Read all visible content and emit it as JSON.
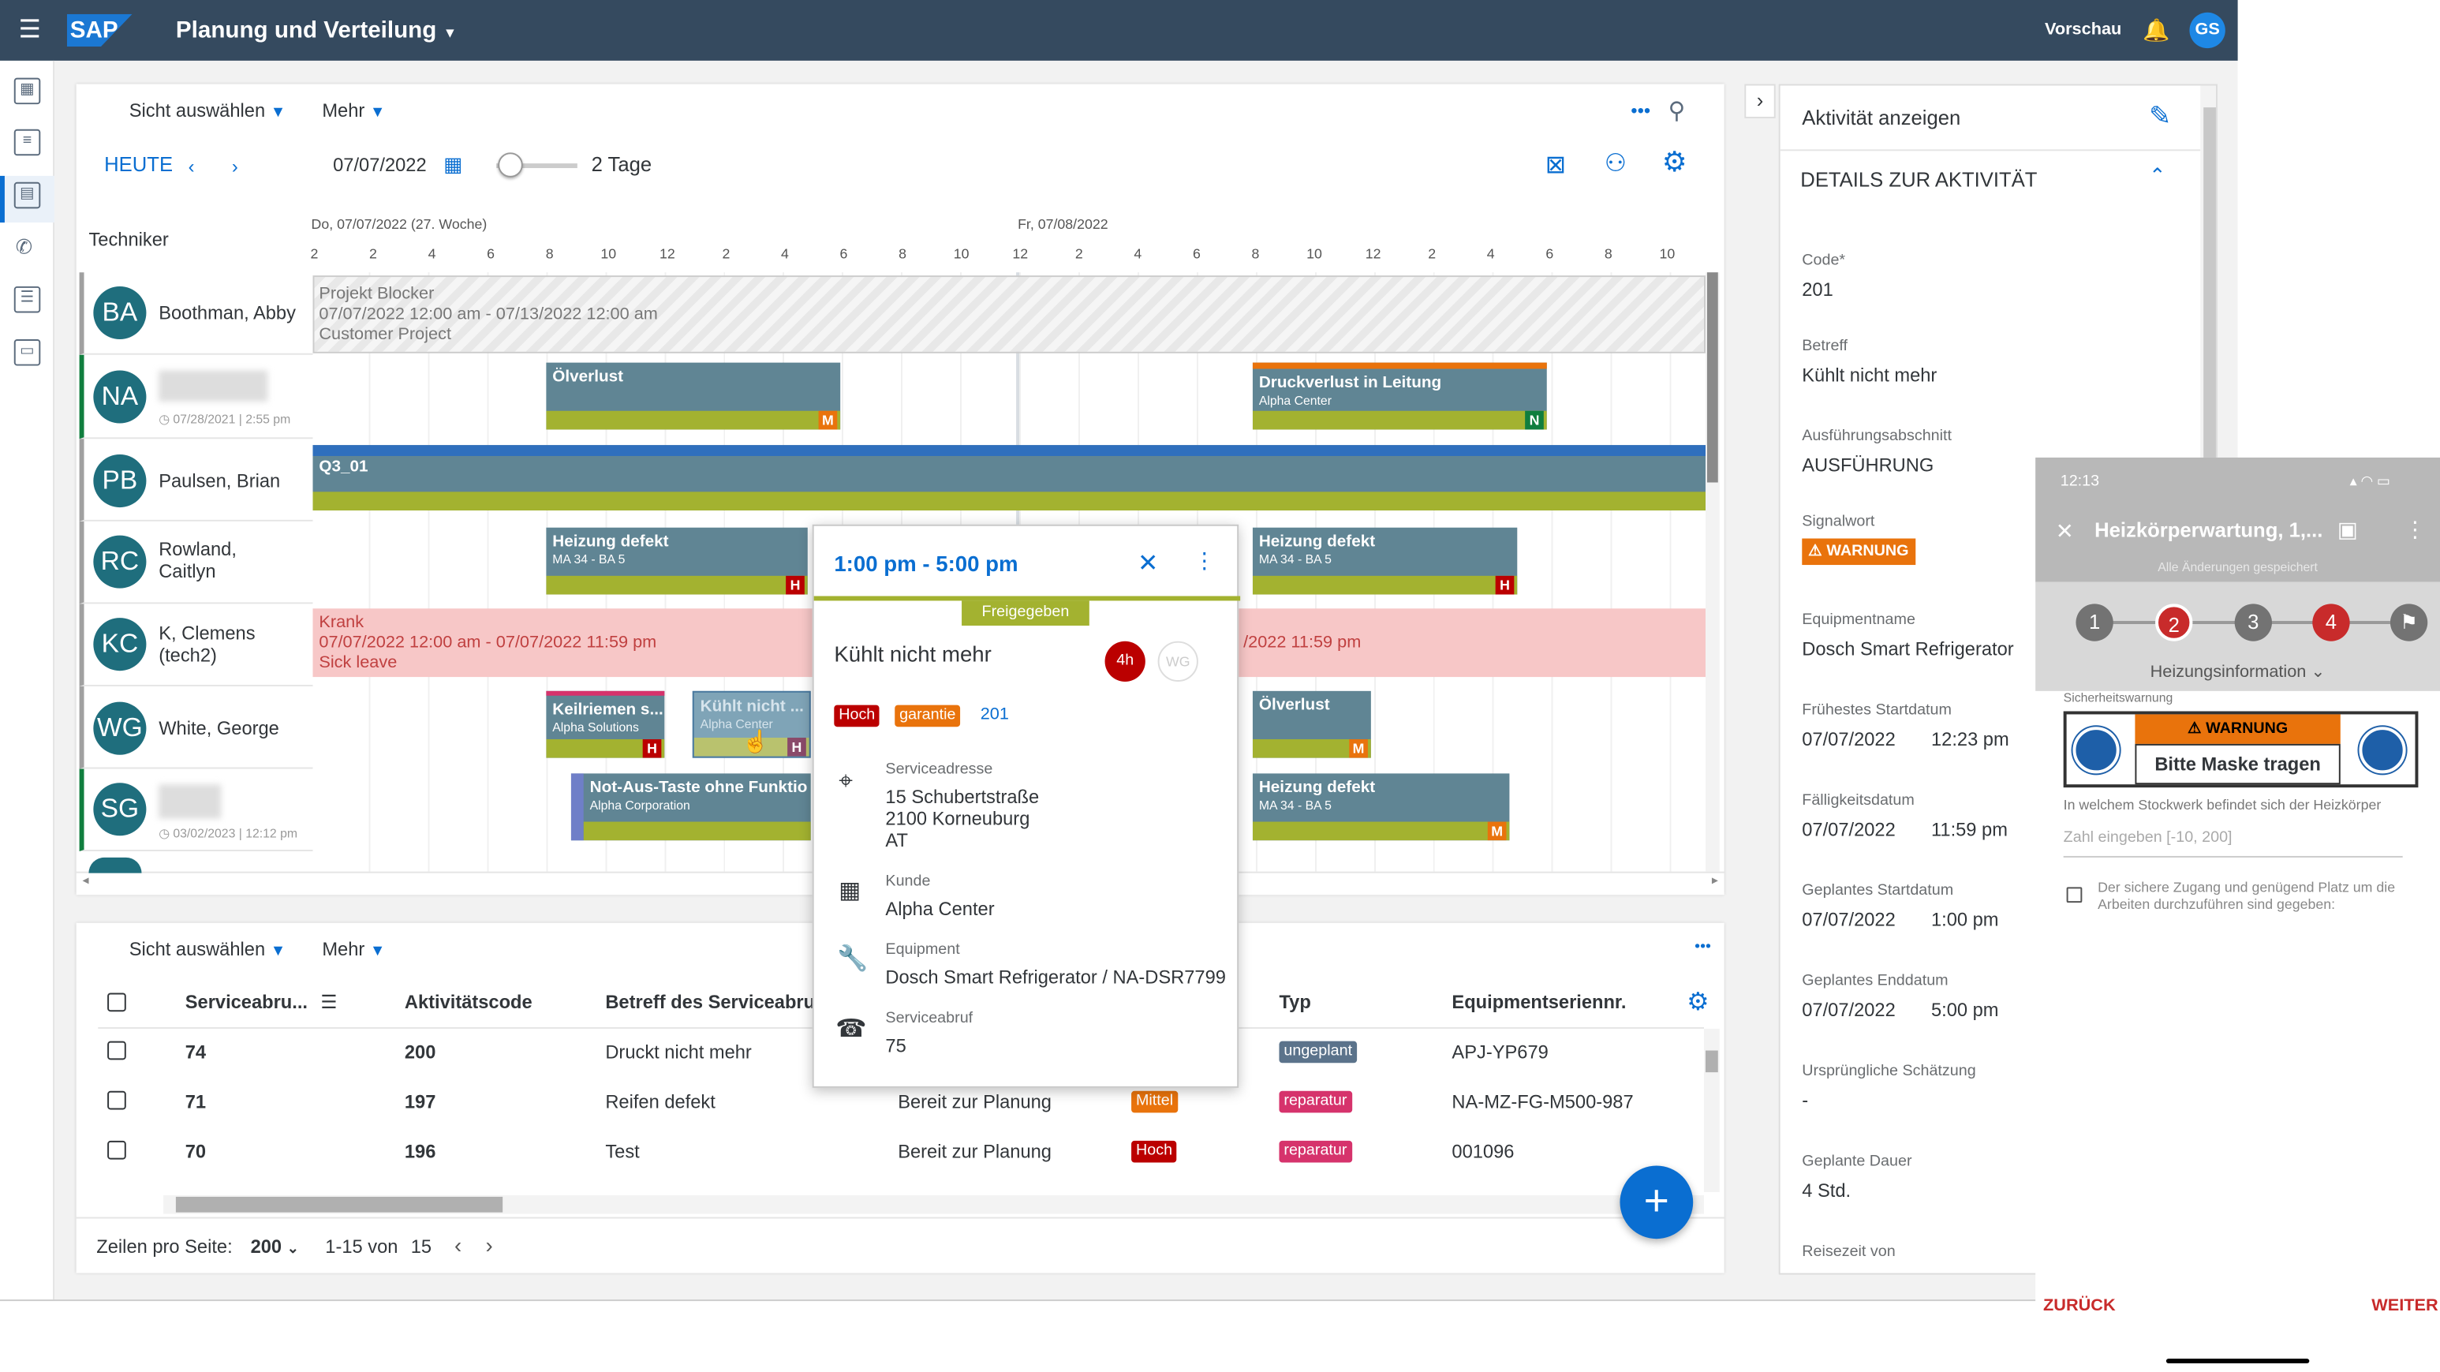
{
  "shell": {
    "logo": "SAP",
    "title": "Planung und Verteilung",
    "preview": "Vorschau",
    "avatar": "GS"
  },
  "board": {
    "view_select": "Sicht auswählen",
    "more": "Mehr",
    "today": "HEUTE",
    "date": "07/07/2022",
    "range": "2 Tage",
    "tech_header": "Techniker",
    "day1": "Do, 07/07/2022 (27. Woche)",
    "day2": "Fr, 07/08/2022",
    "ticks": [
      "2",
      "2",
      "4",
      "6",
      "8",
      "10",
      "12",
      "2",
      "4",
      "6",
      "8",
      "10",
      "12",
      "2",
      "4",
      "6",
      "8",
      "10",
      "12",
      "2",
      "4",
      "6",
      "8",
      "10"
    ],
    "technicians": [
      {
        "initials": "BA",
        "name": "Boothman, Abby"
      },
      {
        "initials": "NA",
        "name": "",
        "sub": "07/28/2021 | 2:55 pm"
      },
      {
        "initials": "PB",
        "name": "Paulsen, Brian"
      },
      {
        "initials": "RC",
        "name": "Rowland,",
        "name2": "Caitlyn"
      },
      {
        "initials": "KC",
        "name": "K, Clemens",
        "name2": "(tech2)"
      },
      {
        "initials": "WG",
        "name": "White, George"
      },
      {
        "initials": "SG",
        "name": "",
        "sub": "03/02/2023 | 12:12 pm"
      }
    ],
    "blocker": {
      "title": "Projekt Blocker",
      "range": "07/07/2022 12:00 am - 07/13/2022 12:00 am",
      "sub": "Customer Project"
    },
    "sick": {
      "title": "Krank",
      "range": "07/07/2022 12:00 am - 07/07/2022 11:59 pm",
      "sub": "Sick leave",
      "range_tail": "/2022 11:59 pm"
    },
    "events": {
      "olverlust": "Ölverlust",
      "druck": "Druckverlust in Leitung",
      "alpha": "Alpha Center",
      "q3": "Q3_01",
      "heizung": "Heizung defekt",
      "ma": "MA 34 - BA 5",
      "keilriemen": "Keilriemen s...",
      "alphasol": "Alpha Solutions",
      "kuehlt": "Kühlt nicht ...",
      "notaus": "Not-Aus-Taste ohne Funktio",
      "alphacorp": "Alpha Corporation",
      "H": "H",
      "M": "M",
      "N": "N"
    }
  },
  "popover": {
    "time": "1:00 pm - 5:00 pm",
    "status": "Freigegeben",
    "title": "Kühlt nicht mehr",
    "duration": "4h",
    "initials": "WG",
    "prio": "Hoch",
    "type": "garantie",
    "code": "201",
    "addr_label": "Serviceadresse",
    "addr1": "15 Schubertstraße",
    "addr2": "2100 Korneuburg",
    "addr3": "AT",
    "cust_label": "Kunde",
    "cust": "Alpha Center",
    "equip_label": "Equipment",
    "equip": "Dosch Smart Refrigerator / NA-DSR7799",
    "call_label": "Serviceabruf",
    "call": "75"
  },
  "list": {
    "view_select": "Sicht auswählen",
    "more": "Mehr",
    "headers": {
      "call": "Serviceabru...",
      "code": "Aktivitätscode",
      "subject": "Betreff des Serviceabruf",
      "type": "Typ",
      "serial": "Equipmentseriennr."
    },
    "rows": [
      {
        "call": "74",
        "code": "200",
        "subject": "Druckt nicht mehr",
        "status": "",
        "prio": "",
        "type": "ungeplant",
        "serial": "APJ-YP679"
      },
      {
        "call": "71",
        "code": "197",
        "subject": "Reifen defekt",
        "status": "Bereit zur Planung",
        "prio": "Mittel",
        "type": "reparatur",
        "serial": "NA-MZ-FG-M500-987"
      },
      {
        "call": "70",
        "code": "196",
        "subject": "Test",
        "status": "Bereit zur Planung",
        "prio": "Hoch",
        "type": "reparatur",
        "serial": "001096"
      }
    ],
    "rows_label": "Zeilen pro Seite:",
    "rows_value": "200",
    "range": "1-15 von",
    "total": "15"
  },
  "detail": {
    "header": "Aktivität anzeigen",
    "section": "DETAILS ZUR AKTIVITÄT",
    "fields": [
      {
        "label": "Code*",
        "value": "201"
      },
      {
        "label": "Betreff",
        "value": "Kühlt nicht mehr"
      },
      {
        "label": "Ausführungsabschnitt",
        "value": "AUSFÜHRUNG"
      },
      {
        "label": "Signalwort",
        "value": "WARNUNG"
      },
      {
        "label": "Equipmentname",
        "value": "Dosch Smart Refrigerator"
      },
      {
        "label": "Frühestes Startdatum",
        "value": "07/07/2022",
        "value2": "12:23 pm"
      },
      {
        "label": "Fälligkeitsdatum",
        "value": "07/07/2022",
        "value2": "11:59 pm"
      },
      {
        "label": "Geplantes Startdatum",
        "value": "07/07/2022",
        "value2": "1:00 pm"
      },
      {
        "label": "Geplantes Enddatum",
        "value": "07/07/2022",
        "value2": "5:00 pm"
      },
      {
        "label": "Ursprüngliche Schätzung",
        "value": "-"
      },
      {
        "label": "Geplante Dauer",
        "value": "4 Std."
      },
      {
        "label": "Reisezeit von",
        "value": ""
      }
    ]
  },
  "mobile": {
    "time": "12:13",
    "title": "Heizkörperwartung, 1,...",
    "saved": "Alle Änderungen gespeichert",
    "steps": [
      "1",
      "2",
      "3",
      "4"
    ],
    "section": "Heizungsinformation",
    "safety": "Sicherheitswarnung",
    "warn": "WARNUNG",
    "mask": "Bitte Maske tragen",
    "question": "In welchem Stockwerk befindet sich der Heizkörper",
    "placeholder": "Zahl eingeben [-10, 200]",
    "check": "Der sichere Zugang und genügend Platz um die Arbeiten durchzuführen sind gegeben:",
    "back": "ZURÜCK",
    "next": "WEITER"
  }
}
